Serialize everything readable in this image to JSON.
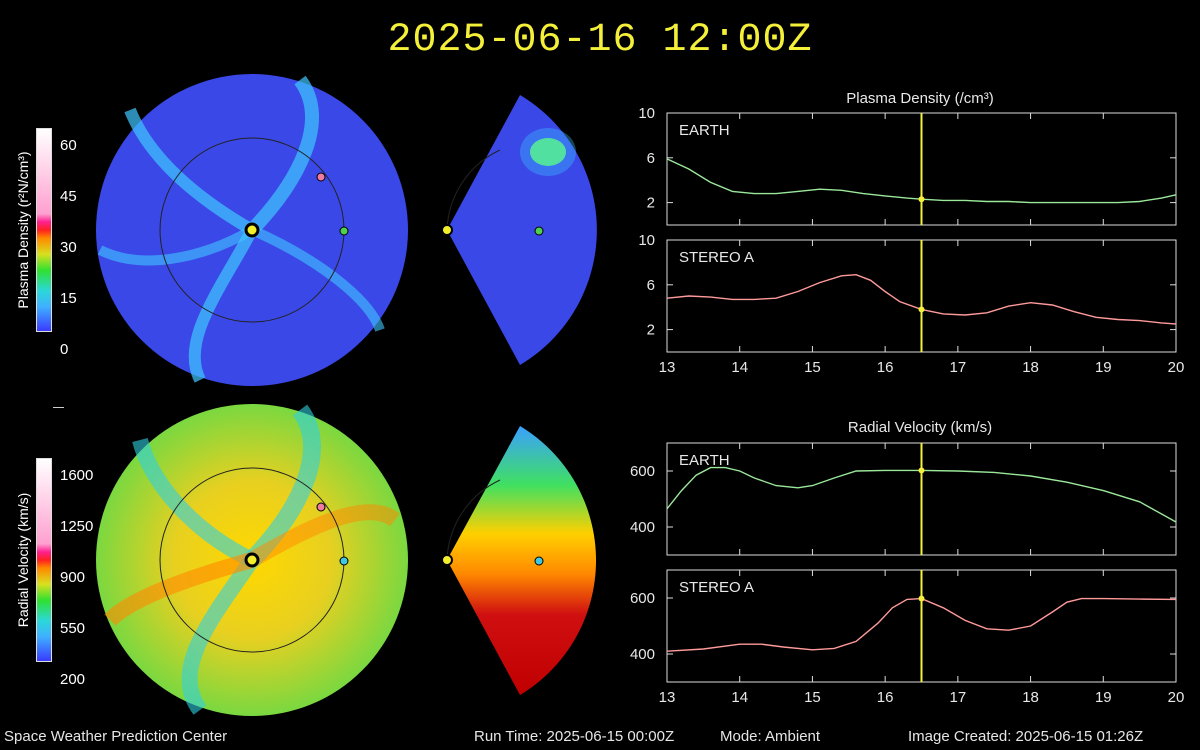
{
  "header": {
    "title": "2025-06-16 12:00Z"
  },
  "footer": {
    "org": "Space Weather Prediction Center",
    "run_time": "Run Time: 2025-06-15 00:00Z",
    "mode": "Mode: Ambient",
    "created": "Image Created: 2025-06-15 01:26Z"
  },
  "colorbars": {
    "density": {
      "label_html": "Plasma Density (r²N/cm³)",
      "ticks": [
        "60",
        "45",
        "30",
        "15",
        "0"
      ]
    },
    "velocity": {
      "label": "Radial Velocity (km/s)",
      "ticks": [
        "1600",
        "1250",
        "900",
        "550",
        "200"
      ]
    }
  },
  "markers": {
    "sun": "#f2ee2a",
    "earth": "#4fd04f",
    "stereo_a": "#f07aa0"
  },
  "colors": {
    "earth_line": "#9be89b",
    "stereo_line": "#ff9a9a",
    "cursor": "#f4f03a"
  },
  "chart_data": [
    {
      "type": "line",
      "title": "Plasma Density (/cm³)",
      "panel_label": "EARTH",
      "xlim": [
        13,
        20
      ],
      "ylim": [
        0,
        10
      ],
      "yticks": [
        2,
        6,
        10
      ],
      "xticks": [
        13,
        14,
        15,
        16,
        17,
        18,
        19,
        20
      ],
      "cursor_x": 16.5,
      "x": [
        13.0,
        13.3,
        13.6,
        13.9,
        14.2,
        14.5,
        14.8,
        15.1,
        15.4,
        15.7,
        16.0,
        16.3,
        16.5,
        16.8,
        17.1,
        17.4,
        17.7,
        18.0,
        18.3,
        18.6,
        18.9,
        19.2,
        19.5,
        19.8,
        20.0
      ],
      "y": [
        5.9,
        5.0,
        3.8,
        3.0,
        2.8,
        2.8,
        3.0,
        3.2,
        3.1,
        2.8,
        2.6,
        2.4,
        2.3,
        2.2,
        2.2,
        2.1,
        2.1,
        2.0,
        2.0,
        2.0,
        2.0,
        2.0,
        2.1,
        2.4,
        2.7
      ]
    },
    {
      "type": "line",
      "panel_label": "STEREO A",
      "xlim": [
        13,
        20
      ],
      "ylim": [
        0,
        10
      ],
      "yticks": [
        2,
        6,
        10
      ],
      "xticks": [
        13,
        14,
        15,
        16,
        17,
        18,
        19,
        20
      ],
      "cursor_x": 16.5,
      "x": [
        13.0,
        13.3,
        13.6,
        13.9,
        14.2,
        14.5,
        14.8,
        15.1,
        15.4,
        15.6,
        15.8,
        16.0,
        16.2,
        16.5,
        16.8,
        17.1,
        17.4,
        17.7,
        18.0,
        18.3,
        18.6,
        18.9,
        19.2,
        19.5,
        19.8,
        20.0
      ],
      "y": [
        4.8,
        5.0,
        4.9,
        4.7,
        4.7,
        4.8,
        5.4,
        6.2,
        6.8,
        6.9,
        6.4,
        5.4,
        4.5,
        3.8,
        3.4,
        3.3,
        3.5,
        4.1,
        4.4,
        4.2,
        3.6,
        3.1,
        2.9,
        2.8,
        2.6,
        2.5
      ]
    },
    {
      "type": "line",
      "title": "Radial Velocity (km/s)",
      "panel_label": "EARTH",
      "xlim": [
        13,
        20
      ],
      "ylim": [
        300,
        700
      ],
      "yticks": [
        400,
        600
      ],
      "xticks": [
        13,
        14,
        15,
        16,
        17,
        18,
        19,
        20
      ],
      "cursor_x": 16.5,
      "x": [
        13.0,
        13.2,
        13.4,
        13.6,
        13.8,
        14.0,
        14.2,
        14.5,
        14.8,
        15.0,
        15.3,
        15.6,
        16.0,
        16.5,
        17.0,
        17.5,
        18.0,
        18.5,
        19.0,
        19.5,
        20.0
      ],
      "y": [
        465,
        530,
        585,
        612,
        612,
        600,
        575,
        548,
        540,
        548,
        575,
        600,
        602,
        602,
        600,
        595,
        582,
        560,
        530,
        490,
        418
      ]
    },
    {
      "type": "line",
      "panel_label": "STEREO A",
      "xlim": [
        13,
        20
      ],
      "ylim": [
        300,
        700
      ],
      "yticks": [
        400,
        600
      ],
      "xticks": [
        13,
        14,
        15,
        16,
        17,
        18,
        19,
        20
      ],
      "cursor_x": 16.5,
      "x": [
        13.0,
        13.5,
        14.0,
        14.3,
        14.6,
        15.0,
        15.3,
        15.6,
        15.9,
        16.1,
        16.3,
        16.5,
        16.8,
        17.1,
        17.4,
        17.7,
        18.0,
        18.3,
        18.5,
        18.7,
        19.0,
        19.5,
        20.0
      ],
      "y": [
        410,
        418,
        435,
        435,
        425,
        415,
        420,
        445,
        510,
        565,
        595,
        598,
        565,
        520,
        490,
        485,
        500,
        550,
        585,
        598,
        598,
        596,
        595
      ]
    }
  ]
}
